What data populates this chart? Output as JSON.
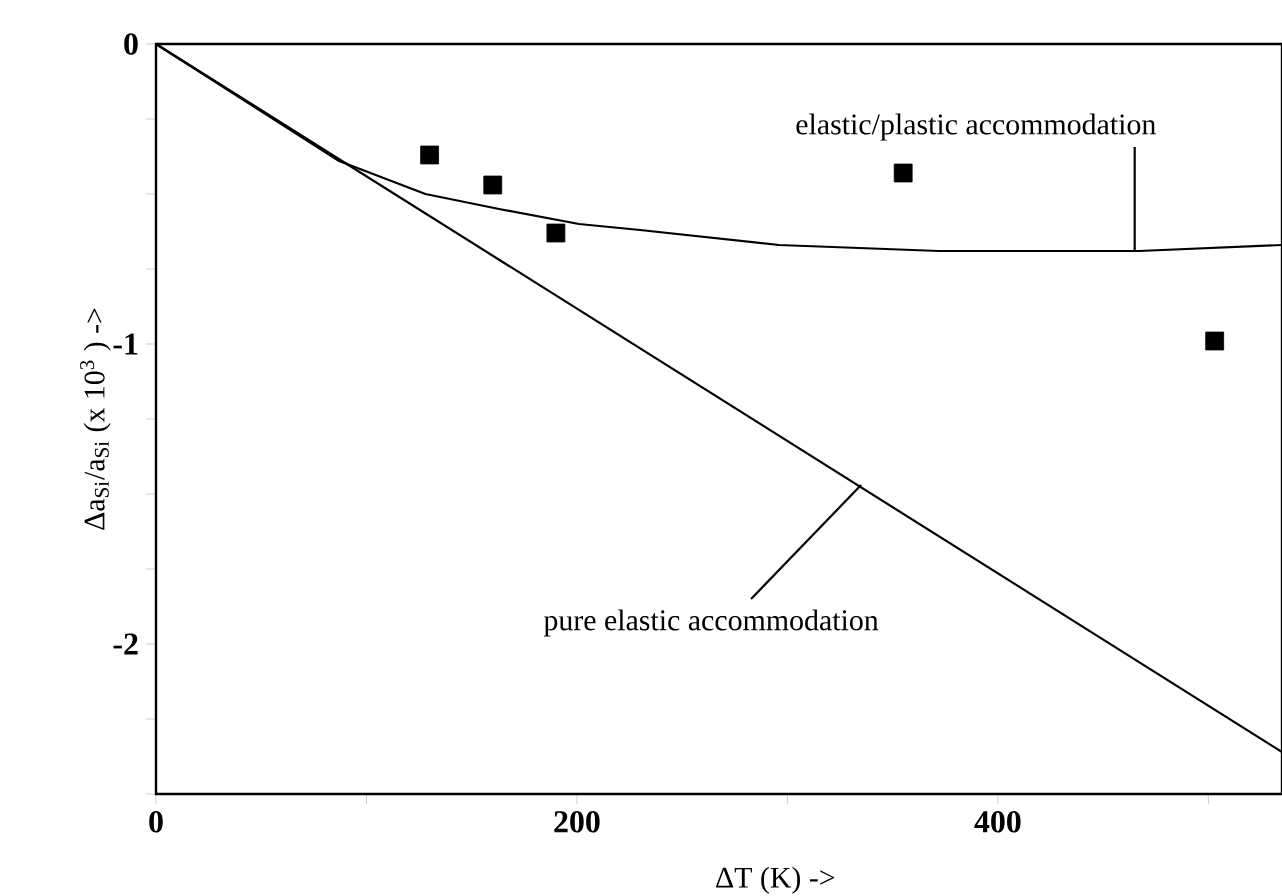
{
  "chart_data": {
    "type": "line",
    "xlabel": "ΔT (K)  ->",
    "ylabel": "Δa$_{Si}$/a$_{Si}$   (x 10$^{3}$ )  ->",
    "xlim": [
      0,
      535
    ],
    "ylim": [
      -2.5,
      0
    ],
    "xticks": [
      0,
      {
        "value": 100,
        "label": null
      },
      200,
      {
        "value": 300,
        "label": null
      },
      400,
      {
        "value": 500,
        "label": null
      }
    ],
    "yticks": [
      {
        "value": -2.5,
        "label": null
      },
      {
        "value": -2.25,
        "label": null
      },
      -2,
      {
        "value": -1.75,
        "label": null
      },
      {
        "value": -1.5,
        "label": null
      },
      {
        "value": -1.25,
        "label": null
      },
      -1,
      {
        "value": -0.75,
        "label": null
      },
      {
        "value": -0.5,
        "label": null
      },
      {
        "value": -0.25,
        "label": null
      },
      0
    ],
    "annotations": [
      {
        "text": "elastic/plastic accommodation",
        "x": 465,
        "y": -0.69
      },
      {
        "text": "pure elastic accommodation",
        "x": 335,
        "y": -1.47
      }
    ],
    "series": [
      {
        "color": "#000000",
        "marker": "none",
        "x": [
          0,
          87,
          128,
          163,
          201,
          230,
          296,
          372,
          467,
          535
        ],
        "values": [
          0,
          -0.39,
          -0.5,
          -0.55,
          -0.6,
          -0.62,
          -0.67,
          -0.69,
          -0.69,
          -0.67
        ]
      },
      {
        "color": "#000000",
        "marker": "none",
        "x": [
          0,
          535
        ],
        "values": [
          0,
          -2.36
        ]
      },
      {
        "type": "scatter",
        "color": "#000000",
        "marker": "square",
        "x": [
          130,
          160,
          190,
          355,
          503
        ],
        "values": [
          -0.37,
          -0.47,
          -0.63,
          -0.43,
          -0.99
        ]
      }
    ]
  }
}
